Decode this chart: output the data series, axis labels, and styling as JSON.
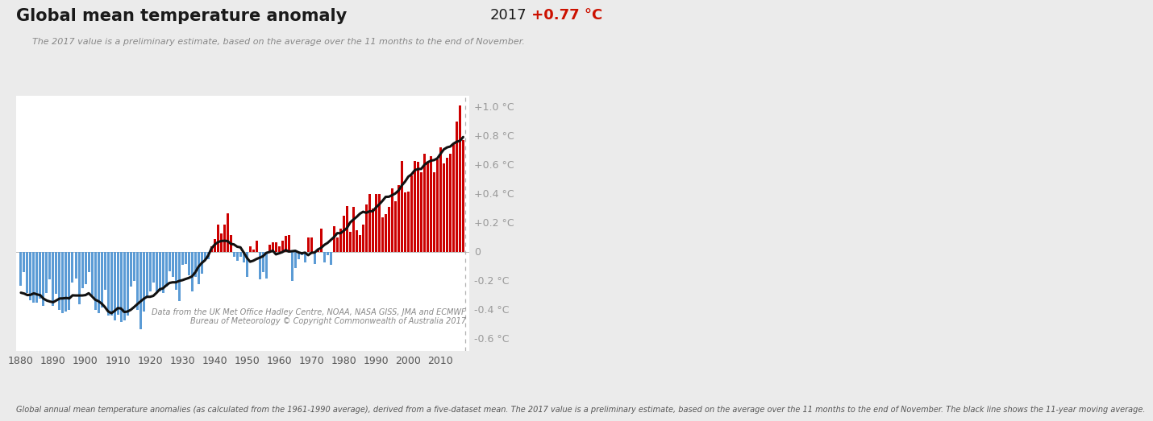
{
  "title": "Global mean temperature anomaly",
  "title2_year": "2017",
  "title2_val": " +0.77 °C",
  "subtitle": "The 2017 value is a preliminary estimate, based on the average over the 11 months to the end of November.",
  "footer": "Global annual mean temperature anomalies (as calculated from the 1961-1990 average), derived from a five-dataset mean. The 2017 value is a preliminary estimate, based on the average over the 11 months to the end of November. The black line shows the 11-year moving average.",
  "datasource": "Data from the UK Met Office Hadley Centre, NOAA, NASA GISS, JMA and ECMWF\nBureau of Meteorology © Copyright Commonwealth of Australia 2017",
  "years": [
    1880,
    1881,
    1882,
    1883,
    1884,
    1885,
    1886,
    1887,
    1888,
    1889,
    1890,
    1891,
    1892,
    1893,
    1894,
    1895,
    1896,
    1897,
    1898,
    1899,
    1900,
    1901,
    1902,
    1903,
    1904,
    1905,
    1906,
    1907,
    1908,
    1909,
    1910,
    1911,
    1912,
    1913,
    1914,
    1915,
    1916,
    1917,
    1918,
    1919,
    1920,
    1921,
    1922,
    1923,
    1924,
    1925,
    1926,
    1927,
    1928,
    1929,
    1930,
    1931,
    1932,
    1933,
    1934,
    1935,
    1936,
    1937,
    1938,
    1939,
    1940,
    1941,
    1942,
    1943,
    1944,
    1945,
    1946,
    1947,
    1948,
    1949,
    1950,
    1951,
    1952,
    1953,
    1954,
    1955,
    1956,
    1957,
    1958,
    1959,
    1960,
    1961,
    1962,
    1963,
    1964,
    1965,
    1966,
    1967,
    1968,
    1969,
    1970,
    1971,
    1972,
    1973,
    1974,
    1975,
    1976,
    1977,
    1978,
    1979,
    1980,
    1981,
    1982,
    1983,
    1984,
    1985,
    1986,
    1987,
    1988,
    1989,
    1990,
    1991,
    1992,
    1993,
    1994,
    1995,
    1996,
    1997,
    1998,
    1999,
    2000,
    2001,
    2002,
    2003,
    2004,
    2005,
    2006,
    2007,
    2008,
    2009,
    2010,
    2011,
    2012,
    2013,
    2014,
    2015,
    2016,
    2017
  ],
  "anomalies": [
    -0.23,
    -0.14,
    -0.28,
    -0.33,
    -0.35,
    -0.35,
    -0.32,
    -0.37,
    -0.28,
    -0.19,
    -0.37,
    -0.29,
    -0.4,
    -0.42,
    -0.41,
    -0.4,
    -0.21,
    -0.18,
    -0.36,
    -0.25,
    -0.22,
    -0.14,
    -0.3,
    -0.4,
    -0.42,
    -0.38,
    -0.26,
    -0.44,
    -0.44,
    -0.47,
    -0.43,
    -0.48,
    -0.47,
    -0.44,
    -0.24,
    -0.2,
    -0.4,
    -0.53,
    -0.41,
    -0.31,
    -0.27,
    -0.21,
    -0.27,
    -0.27,
    -0.28,
    -0.24,
    -0.13,
    -0.17,
    -0.26,
    -0.34,
    -0.09,
    -0.08,
    -0.16,
    -0.27,
    -0.17,
    -0.22,
    -0.15,
    -0.05,
    -0.05,
    0.04,
    0.09,
    0.19,
    0.13,
    0.19,
    0.27,
    0.12,
    -0.03,
    -0.06,
    -0.03,
    -0.07,
    -0.17,
    0.04,
    0.02,
    0.08,
    -0.19,
    -0.14,
    -0.18,
    0.05,
    0.07,
    0.07,
    0.04,
    0.08,
    0.11,
    0.12,
    -0.2,
    -0.11,
    -0.05,
    -0.02,
    -0.07,
    0.1,
    0.1,
    -0.08,
    0.01,
    0.16,
    -0.07,
    -0.02,
    -0.09,
    0.18,
    0.1,
    0.16,
    0.25,
    0.32,
    0.14,
    0.31,
    0.15,
    0.12,
    0.19,
    0.33,
    0.4,
    0.3,
    0.4,
    0.4,
    0.24,
    0.26,
    0.31,
    0.44,
    0.35,
    0.46,
    0.63,
    0.41,
    0.42,
    0.53,
    0.63,
    0.62,
    0.55,
    0.68,
    0.62,
    0.66,
    0.55,
    0.64,
    0.72,
    0.61,
    0.65,
    0.68,
    0.75,
    0.9,
    1.01,
    0.77
  ],
  "bg_color": "#ebebeb",
  "plot_bg_color": "#ffffff",
  "bar_color_pos": "#cc0000",
  "bar_color_neg": "#5b9bd5",
  "line_color": "#111111",
  "ylabel_color": "#999999",
  "yticks": [
    -0.6,
    -0.4,
    -0.2,
    0.0,
    0.2,
    0.4,
    0.6,
    0.8,
    1.0
  ],
  "ytick_labels": [
    "-0.6 °C",
    "-0.4 °C",
    "-0.2 °C",
    "0",
    "+0.2 °C",
    "+0.4 °C",
    "+0.6 °C",
    "+0.8 °C",
    "+1.0 °C"
  ],
  "ylim": [
    -0.68,
    1.08
  ],
  "xlim": [
    1878.5,
    2018.8
  ],
  "xticks": [
    1880,
    1890,
    1900,
    1910,
    1920,
    1930,
    1940,
    1950,
    1960,
    1970,
    1980,
    1990,
    2000,
    2010
  ],
  "xtick_labels": [
    "1880",
    "1890",
    "1900",
    "1910",
    "1920",
    "1930",
    "1940",
    "1950",
    "1960",
    "1970",
    "1980",
    "1990",
    "2000",
    "2010"
  ],
  "vline_x": 2017.6,
  "title_fontsize": 15,
  "title2_fontsize": 13,
  "subtitle_fontsize": 8,
  "footer_fontsize": 7,
  "datasource_fontsize": 7,
  "tick_fontsize": 9
}
